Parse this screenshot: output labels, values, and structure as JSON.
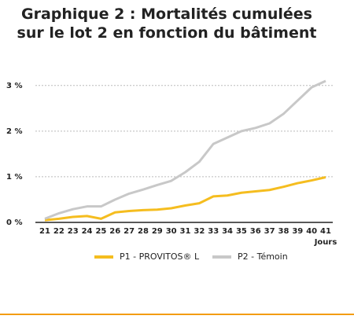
{
  "chart_data": {
    "type": "line",
    "title": [
      "Graphique 2 : Mortalités cumulées",
      "sur le lot 2 en fonction du bâtiment"
    ],
    "x_label": "Jours",
    "categories": [
      "21",
      "22",
      "23",
      "24",
      "25",
      "26",
      "27",
      "28",
      "29",
      "30",
      "31",
      "32",
      "33",
      "34",
      "35",
      "36",
      "37",
      "38",
      "39",
      "40",
      "41"
    ],
    "series": [
      {
        "name": "P1 - PROVITOS® L",
        "color": "#f5bd1f",
        "values": [
          0.05,
          0.08,
          0.12,
          0.14,
          0.08,
          0.22,
          0.25,
          0.27,
          0.28,
          0.31,
          0.37,
          0.42,
          0.57,
          0.59,
          0.65,
          0.68,
          0.71,
          0.78,
          0.86,
          0.92,
          0.99
        ]
      },
      {
        "name": "P2 - Témoin",
        "color": "#c8c8c8",
        "values": [
          0.08,
          0.2,
          0.29,
          0.35,
          0.35,
          0.5,
          0.63,
          0.72,
          0.82,
          0.91,
          1.1,
          1.33,
          1.72,
          1.86,
          2.0,
          2.07,
          2.17,
          2.38,
          2.67,
          2.96,
          3.1
        ]
      }
    ],
    "ylim": [
      0,
      3.1
    ],
    "yticks": [
      {
        "value": 0,
        "label": "0 %"
      },
      {
        "value": 1,
        "label": "1 %"
      },
      {
        "value": 2,
        "label": "2 %"
      },
      {
        "value": 3,
        "label": "3 %"
      }
    ],
    "grid": true
  }
}
